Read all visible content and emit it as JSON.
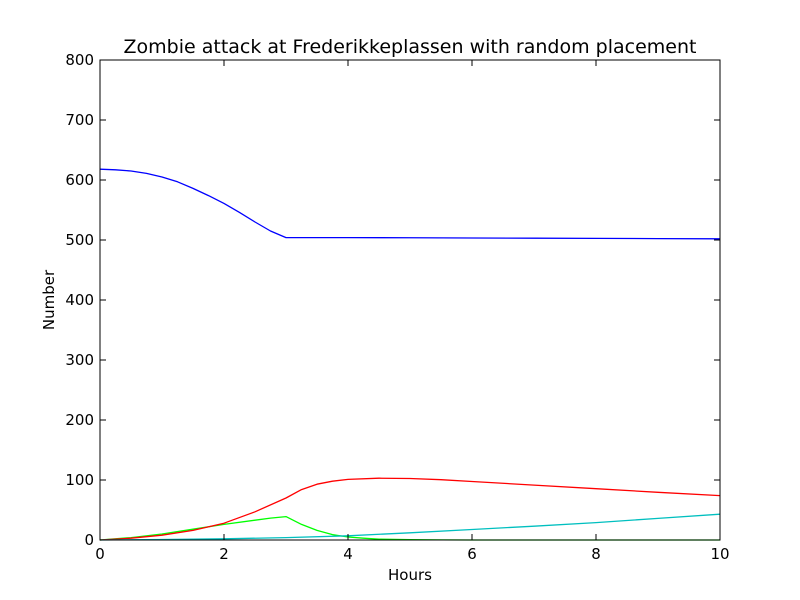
{
  "chart_data": {
    "type": "line",
    "title": "Zombie attack at Frederikkeplassen with random placement",
    "xlabel": "Hours",
    "ylabel": "Number",
    "xlim": [
      0,
      10
    ],
    "ylim": [
      0,
      800
    ],
    "xticks": [
      "0",
      "2",
      "4",
      "6",
      "8",
      "10"
    ],
    "yticks": [
      "0",
      "100",
      "200",
      "300",
      "400",
      "500",
      "600",
      "700",
      "800"
    ],
    "grid": false,
    "series": [
      {
        "color": "#0000ff",
        "x": [
          0,
          0.25,
          0.5,
          0.75,
          1,
          1.25,
          1.5,
          1.75,
          2,
          2.25,
          2.5,
          2.75,
          3,
          4,
          5,
          6,
          7,
          8,
          9,
          10
        ],
        "y": [
          618,
          617,
          615,
          611,
          605,
          597,
          586,
          574,
          561,
          546,
          530,
          515,
          504,
          504,
          503.7,
          503.3,
          503,
          502.7,
          502.3,
          502
        ]
      },
      {
        "color": "#00ff00",
        "x": [
          0,
          0.5,
          1,
          1.5,
          2,
          2.5,
          2.75,
          3,
          3.25,
          3.5,
          3.75,
          4,
          4.25,
          4.5,
          5,
          5.5,
          6,
          7,
          8,
          9,
          10
        ],
        "y": [
          0,
          4,
          10,
          18,
          26,
          33,
          36.5,
          39,
          26,
          16,
          9,
          5,
          3,
          1.5,
          0.5,
          0.2,
          0,
          0,
          0,
          0,
          0
        ]
      },
      {
        "color": "#ff0000",
        "x": [
          0,
          0.5,
          1,
          1.5,
          2,
          2.5,
          3,
          3.25,
          3.5,
          3.75,
          4,
          4.5,
          5,
          5.5,
          6,
          7,
          8,
          9,
          10
        ],
        "y": [
          0,
          3,
          8,
          16,
          28,
          47,
          70,
          84,
          93,
          98,
          101,
          103,
          102.5,
          100.5,
          97.5,
          91.5,
          85.5,
          79.5,
          74
        ]
      },
      {
        "color": "#00bfbf",
        "x": [
          0,
          1,
          2,
          3,
          4,
          5,
          6,
          7,
          8,
          9,
          10
        ],
        "y": [
          0,
          0.8,
          2,
          4,
          7,
          12,
          17.5,
          23,
          29,
          36,
          43
        ]
      }
    ]
  }
}
